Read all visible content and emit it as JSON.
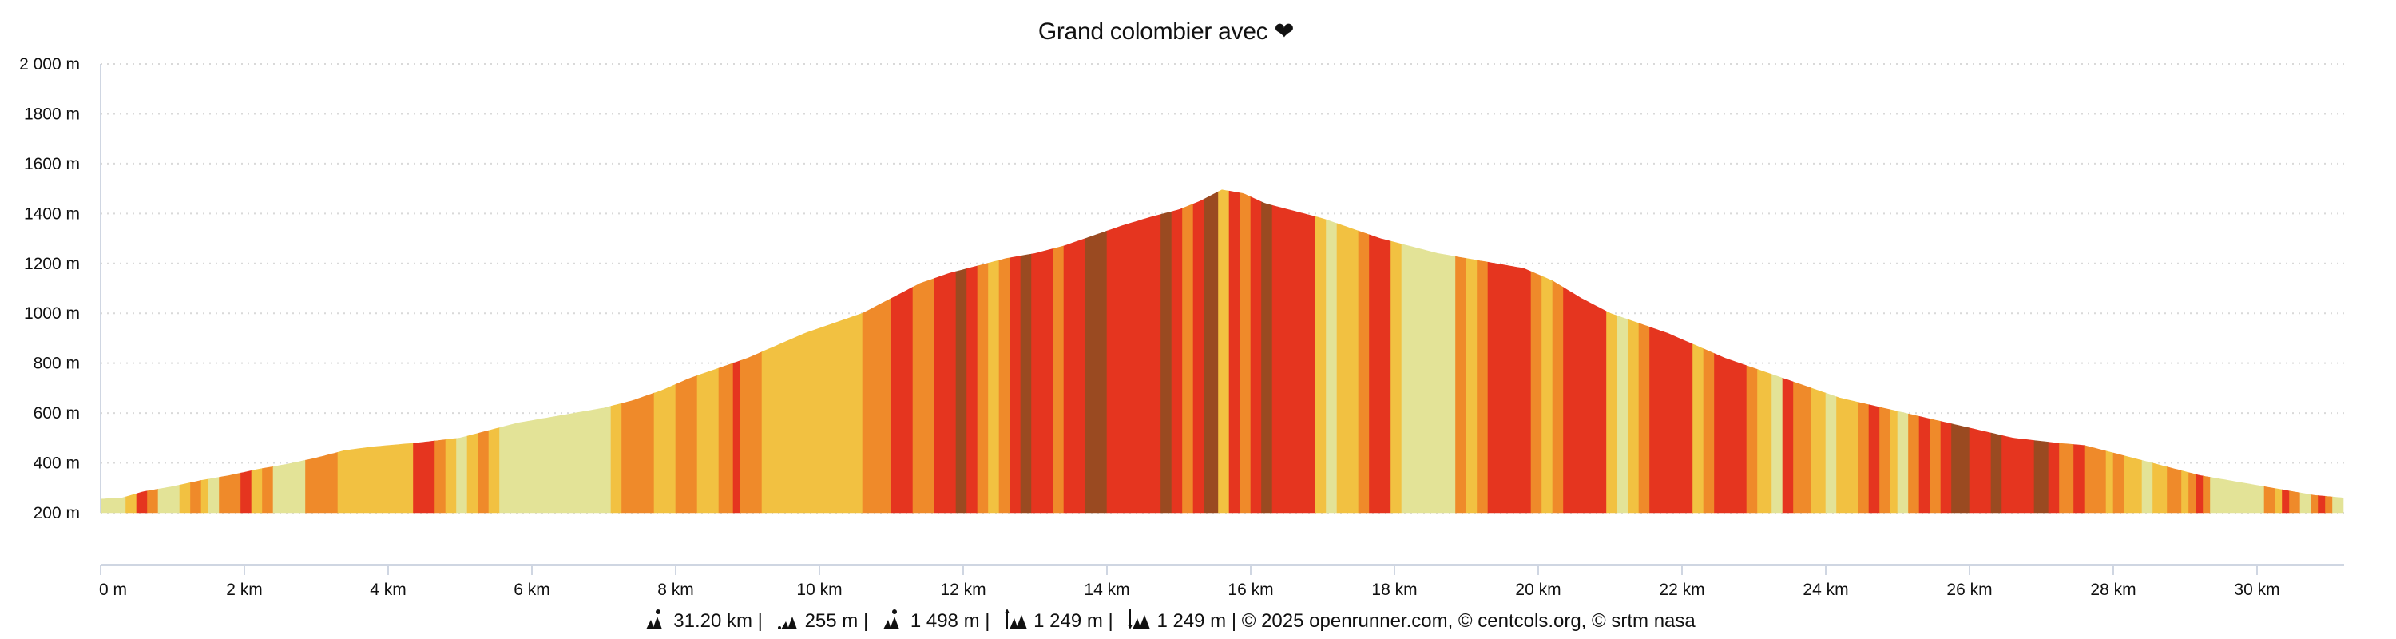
{
  "title": "Grand colombier avec ❤",
  "colors": {
    "grade_0": "#e3e397",
    "grade_1": "#f2c141",
    "grade_2": "#ef8a2a",
    "grade_3": "#e5351f",
    "grade_4": "#9a4a21",
    "grid": "#d9d9d9",
    "axis": "#cfd6e2"
  },
  "footer": {
    "distance": "31.20 km",
    "min_alt": "255 m",
    "max_alt": "1 498 m",
    "ascent": "1 249 m",
    "descent": "1 249 m",
    "copyright": "© 2025 openrunner.com, © centcols.org, © srtm nasa",
    "separator": "|"
  },
  "chart_data": {
    "type": "area",
    "title": "Grand colombier avec ❤",
    "xlabel": "",
    "ylabel": "",
    "xlim": [
      0,
      31.2
    ],
    "ylim": [
      200,
      2000
    ],
    "grid": true,
    "y_ticks": [
      "200 m",
      "400 m",
      "600 m",
      "800 m",
      "1000 m",
      "1200 m",
      "1400 m",
      "1600 m",
      "1800 m",
      "2 000 m"
    ],
    "y_tick_values": [
      200,
      400,
      600,
      800,
      1000,
      1200,
      1400,
      1600,
      1800,
      2000
    ],
    "x_ticks": [
      "0 m",
      "2 km",
      "4 km",
      "6 km",
      "8 km",
      "10 km",
      "12 km",
      "14 km",
      "16 km",
      "18 km",
      "20 km",
      "22 km",
      "24 km",
      "26 km",
      "28 km",
      "30 km"
    ],
    "x_tick_values": [
      0,
      2,
      4,
      6,
      8,
      10,
      12,
      14,
      16,
      18,
      20,
      22,
      24,
      26,
      28,
      30
    ],
    "profile": {
      "x_km": [
        0,
        0.3,
        0.6,
        1.0,
        1.4,
        1.8,
        2.2,
        2.6,
        3.0,
        3.4,
        3.8,
        4.4,
        5.0,
        5.4,
        5.8,
        6.4,
        7.0,
        7.4,
        7.8,
        8.2,
        8.6,
        9.0,
        9.4,
        9.8,
        10.2,
        10.6,
        11.0,
        11.4,
        11.8,
        12.2,
        12.6,
        13.0,
        13.4,
        13.8,
        14.2,
        14.6,
        15.0,
        15.3,
        15.6,
        15.9,
        16.2,
        16.6,
        17.0,
        17.4,
        17.8,
        18.2,
        18.6,
        19.0,
        19.4,
        19.8,
        20.2,
        20.6,
        21.0,
        21.4,
        21.8,
        22.2,
        22.6,
        23.0,
        23.4,
        23.8,
        24.2,
        24.8,
        25.4,
        26.0,
        26.6,
        27.2,
        27.6,
        28.0,
        28.4,
        28.8,
        29.2,
        29.6,
        30.0,
        30.4,
        30.8,
        31.2
      ],
      "elev_m": [
        255,
        260,
        285,
        305,
        330,
        350,
        375,
        395,
        420,
        450,
        465,
        480,
        500,
        530,
        560,
        590,
        620,
        650,
        690,
        740,
        780,
        820,
        870,
        920,
        960,
        1000,
        1060,
        1120,
        1160,
        1190,
        1220,
        1240,
        1270,
        1310,
        1350,
        1385,
        1415,
        1450,
        1495,
        1480,
        1440,
        1410,
        1380,
        1340,
        1300,
        1270,
        1240,
        1220,
        1200,
        1180,
        1130,
        1060,
        1000,
        960,
        920,
        870,
        820,
        780,
        740,
        700,
        660,
        620,
        580,
        540,
        500,
        480,
        470,
        440,
        410,
        380,
        350,
        330,
        310,
        290,
        270,
        260
      ]
    },
    "grade_bands": [
      [
        0.0,
        0.35,
        0
      ],
      [
        0.35,
        0.5,
        1
      ],
      [
        0.5,
        0.65,
        3
      ],
      [
        0.65,
        0.8,
        2
      ],
      [
        0.8,
        1.1,
        0
      ],
      [
        1.1,
        1.25,
        1
      ],
      [
        1.25,
        1.4,
        2
      ],
      [
        1.4,
        1.5,
        1
      ],
      [
        1.5,
        1.65,
        0
      ],
      [
        1.65,
        1.95,
        2
      ],
      [
        1.95,
        2.1,
        3
      ],
      [
        2.1,
        2.25,
        1
      ],
      [
        2.25,
        2.4,
        2
      ],
      [
        2.4,
        2.85,
        0
      ],
      [
        2.85,
        3.3,
        2
      ],
      [
        3.3,
        4.35,
        1
      ],
      [
        4.35,
        4.65,
        3
      ],
      [
        4.65,
        4.8,
        2
      ],
      [
        4.8,
        4.95,
        1
      ],
      [
        4.95,
        5.1,
        0
      ],
      [
        5.1,
        5.25,
        1
      ],
      [
        5.25,
        5.4,
        2
      ],
      [
        5.4,
        5.55,
        1
      ],
      [
        5.55,
        7.1,
        0
      ],
      [
        7.1,
        7.25,
        1
      ],
      [
        7.25,
        7.7,
        2
      ],
      [
        7.7,
        8.0,
        1
      ],
      [
        8.0,
        8.3,
        2
      ],
      [
        8.3,
        8.6,
        1
      ],
      [
        8.6,
        8.8,
        2
      ],
      [
        8.8,
        8.9,
        3
      ],
      [
        8.9,
        9.2,
        2
      ],
      [
        9.2,
        10.6,
        1
      ],
      [
        10.6,
        11.0,
        2
      ],
      [
        11.0,
        11.3,
        3
      ],
      [
        11.3,
        11.6,
        2
      ],
      [
        11.6,
        11.9,
        3
      ],
      [
        11.9,
        12.05,
        4
      ],
      [
        12.05,
        12.2,
        3
      ],
      [
        12.2,
        12.35,
        2
      ],
      [
        12.35,
        12.5,
        1
      ],
      [
        12.5,
        12.65,
        2
      ],
      [
        12.65,
        12.8,
        3
      ],
      [
        12.8,
        12.95,
        4
      ],
      [
        12.95,
        13.25,
        3
      ],
      [
        13.25,
        13.4,
        2
      ],
      [
        13.4,
        13.7,
        3
      ],
      [
        13.7,
        14.0,
        4
      ],
      [
        14.0,
        14.75,
        3
      ],
      [
        14.75,
        14.9,
        4
      ],
      [
        14.9,
        15.05,
        3
      ],
      [
        15.05,
        15.2,
        2
      ],
      [
        15.2,
        15.35,
        3
      ],
      [
        15.35,
        15.55,
        4
      ],
      [
        15.55,
        15.7,
        1
      ],
      [
        15.7,
        15.85,
        3
      ],
      [
        15.85,
        16.0,
        2
      ],
      [
        16.0,
        16.15,
        3
      ],
      [
        16.15,
        16.3,
        4
      ],
      [
        16.3,
        16.9,
        3
      ],
      [
        16.9,
        17.05,
        1
      ],
      [
        17.05,
        17.2,
        0
      ],
      [
        17.2,
        17.5,
        1
      ],
      [
        17.5,
        17.65,
        2
      ],
      [
        17.65,
        17.95,
        3
      ],
      [
        17.95,
        18.1,
        1
      ],
      [
        18.1,
        18.85,
        0
      ],
      [
        18.85,
        19.0,
        2
      ],
      [
        19.0,
        19.15,
        1
      ],
      [
        19.15,
        19.3,
        2
      ],
      [
        19.3,
        19.9,
        3
      ],
      [
        19.9,
        20.05,
        2
      ],
      [
        20.05,
        20.2,
        1
      ],
      [
        20.2,
        20.35,
        2
      ],
      [
        20.35,
        20.95,
        3
      ],
      [
        20.95,
        21.1,
        1
      ],
      [
        21.1,
        21.25,
        0
      ],
      [
        21.25,
        21.4,
        1
      ],
      [
        21.4,
        21.55,
        2
      ],
      [
        21.55,
        22.15,
        3
      ],
      [
        22.15,
        22.3,
        1
      ],
      [
        22.3,
        22.45,
        2
      ],
      [
        22.45,
        22.9,
        3
      ],
      [
        22.9,
        23.05,
        2
      ],
      [
        23.05,
        23.25,
        1
      ],
      [
        23.25,
        23.4,
        0
      ],
      [
        23.4,
        23.55,
        3
      ],
      [
        23.55,
        23.8,
        2
      ],
      [
        23.8,
        24.0,
        1
      ],
      [
        24.0,
        24.15,
        0
      ],
      [
        24.15,
        24.45,
        1
      ],
      [
        24.45,
        24.6,
        2
      ],
      [
        24.6,
        24.75,
        3
      ],
      [
        24.75,
        24.9,
        2
      ],
      [
        24.9,
        25.0,
        1
      ],
      [
        25.0,
        25.15,
        0
      ],
      [
        25.15,
        25.3,
        2
      ],
      [
        25.3,
        25.45,
        3
      ],
      [
        25.45,
        25.6,
        2
      ],
      [
        25.6,
        25.75,
        3
      ],
      [
        25.75,
        26.0,
        4
      ],
      [
        26.0,
        26.3,
        3
      ],
      [
        26.3,
        26.45,
        4
      ],
      [
        26.45,
        26.9,
        3
      ],
      [
        26.9,
        27.1,
        4
      ],
      [
        27.1,
        27.25,
        3
      ],
      [
        27.25,
        27.45,
        2
      ],
      [
        27.45,
        27.6,
        3
      ],
      [
        27.6,
        27.9,
        2
      ],
      [
        27.9,
        28.0,
        1
      ],
      [
        28.0,
        28.15,
        2
      ],
      [
        28.15,
        28.4,
        1
      ],
      [
        28.4,
        28.55,
        0
      ],
      [
        28.55,
        28.75,
        1
      ],
      [
        28.75,
        28.95,
        2
      ],
      [
        28.95,
        29.05,
        1
      ],
      [
        29.05,
        29.15,
        2
      ],
      [
        29.15,
        29.25,
        3
      ],
      [
        29.25,
        29.35,
        2
      ],
      [
        29.35,
        30.1,
        0
      ],
      [
        30.1,
        30.25,
        2
      ],
      [
        30.25,
        30.35,
        1
      ],
      [
        30.35,
        30.45,
        3
      ],
      [
        30.45,
        30.6,
        2
      ],
      [
        30.6,
        30.75,
        0
      ],
      [
        30.75,
        30.85,
        2
      ],
      [
        30.85,
        30.95,
        3
      ],
      [
        30.95,
        31.05,
        2
      ],
      [
        31.05,
        31.2,
        0
      ]
    ]
  }
}
